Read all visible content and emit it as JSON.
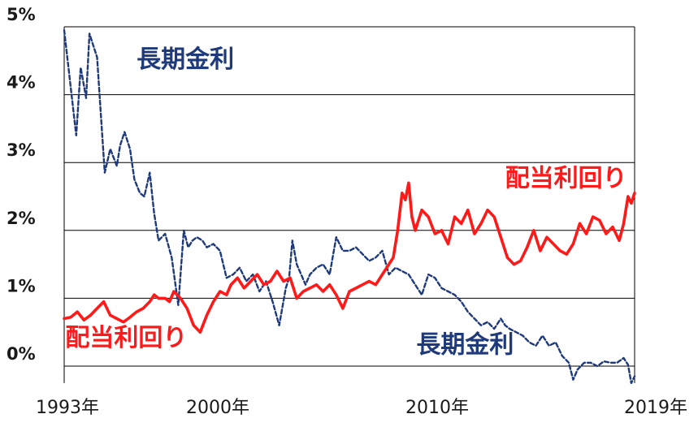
{
  "chart_data": {
    "type": "line",
    "y_unit": "%",
    "ylim": [
      -0.25,
      5.0
    ],
    "xlim": [
      1993.0,
      2019.0
    ],
    "yticks": [
      {
        "value": 5,
        "label": "5%"
      },
      {
        "value": 4,
        "label": "4%"
      },
      {
        "value": 3,
        "label": "3%"
      },
      {
        "value": 2,
        "label": "2%"
      },
      {
        "value": 1,
        "label": "1%"
      },
      {
        "value": 0,
        "label": "0%"
      }
    ],
    "xticks": [
      {
        "value": 1993,
        "label": "1993年"
      },
      {
        "value": 2000,
        "label": "2000年"
      },
      {
        "value": 2010,
        "label": "2010年"
      },
      {
        "value": 2019,
        "label": "2019年"
      }
    ],
    "grid": true,
    "annotations": [
      {
        "text": "長期金利",
        "series": "長期金利",
        "x": 1996.3,
        "y": 4.4
      },
      {
        "text": "配当利回り",
        "series": "配当利回り",
        "x": 2013.1,
        "y": 2.65
      },
      {
        "text": "配当利回り",
        "series": "配当利回り",
        "x": 1993.05,
        "y": 0.3
      },
      {
        "text": "長期金利",
        "series": "長期金利",
        "x": 2009.05,
        "y": 0.2
      }
    ],
    "series": [
      {
        "name": "長期金利",
        "color": "#1f3a7a",
        "style": "dashed",
        "x": [
          1993.0,
          1993.3,
          1993.55,
          1993.75,
          1994.0,
          1994.15,
          1994.3,
          1994.5,
          1994.65,
          1994.85,
          1995.1,
          1995.4,
          1995.55,
          1995.75,
          1996.0,
          1996.2,
          1996.45,
          1996.65,
          1996.9,
          1997.1,
          1997.3,
          1997.6,
          1997.9,
          1998.2,
          1998.45,
          1998.65,
          1998.85,
          1999.05,
          1999.3,
          1999.5,
          1999.8,
          2000.1,
          2000.4,
          2000.7,
          2001.0,
          2001.3,
          2001.6,
          2001.9,
          2002.2,
          2002.5,
          2002.8,
          2003.1,
          2003.25,
          2003.4,
          2003.6,
          2003.8,
          2004.0,
          2004.2,
          2004.5,
          2004.8,
          2005.1,
          2005.4,
          2005.7,
          2006.0,
          2006.3,
          2006.6,
          2006.9,
          2007.2,
          2007.5,
          2007.8,
          2008.1,
          2008.4,
          2008.7,
          2009.0,
          2009.3,
          2009.6,
          2009.9,
          2010.2,
          2010.5,
          2010.8,
          2011.1,
          2011.4,
          2011.7,
          2012.0,
          2012.3,
          2012.6,
          2012.9,
          2013.1,
          2013.3,
          2013.6,
          2013.9,
          2014.2,
          2014.5,
          2014.8,
          2015.1,
          2015.4,
          2015.7,
          2016.0,
          2016.2,
          2016.4,
          2016.7,
          2017.0,
          2017.3,
          2017.6,
          2017.9,
          2018.2,
          2018.5,
          2018.7,
          2018.85,
          2019.0
        ],
        "values": [
          4.95,
          4.1,
          3.4,
          4.4,
          3.95,
          4.9,
          4.75,
          4.55,
          3.8,
          2.85,
          3.2,
          2.95,
          3.25,
          3.45,
          3.2,
          2.75,
          2.55,
          2.5,
          2.85,
          2.25,
          1.85,
          1.95,
          1.6,
          0.9,
          2.0,
          1.75,
          1.85,
          1.9,
          1.85,
          1.75,
          1.8,
          1.7,
          1.3,
          1.35,
          1.45,
          1.25,
          1.35,
          1.1,
          1.25,
          0.95,
          0.6,
          1.15,
          1.3,
          1.85,
          1.5,
          1.35,
          1.2,
          1.35,
          1.45,
          1.5,
          1.35,
          1.9,
          1.7,
          1.7,
          1.75,
          1.65,
          1.55,
          1.6,
          1.7,
          1.35,
          1.45,
          1.4,
          1.35,
          1.2,
          1.05,
          1.35,
          1.3,
          1.15,
          1.1,
          1.05,
          0.95,
          0.8,
          0.7,
          0.6,
          0.65,
          0.55,
          0.7,
          0.6,
          0.55,
          0.5,
          0.45,
          0.35,
          0.3,
          0.45,
          0.3,
          0.35,
          0.15,
          0.05,
          -0.2,
          -0.05,
          0.05,
          0.05,
          0.0,
          0.07,
          0.05,
          0.05,
          0.12,
          0.02,
          -0.25,
          -0.15
        ]
      },
      {
        "name": "配当利回り",
        "color": "#ff1a1a",
        "style": "solid",
        "x": [
          1993.0,
          1993.3,
          1993.6,
          1993.9,
          1994.2,
          1994.5,
          1994.8,
          1995.1,
          1995.4,
          1995.7,
          1996.0,
          1996.3,
          1996.6,
          1996.9,
          1997.1,
          1997.3,
          1997.6,
          1997.8,
          1998.0,
          1998.3,
          1998.6,
          1998.9,
          1999.2,
          1999.5,
          1999.8,
          2000.1,
          2000.4,
          2000.6,
          2000.9,
          2001.2,
          2001.5,
          2001.8,
          2002.1,
          2002.4,
          2002.7,
          2003.0,
          2003.3,
          2003.6,
          2003.9,
          2004.2,
          2004.5,
          2004.8,
          2005.1,
          2005.4,
          2005.7,
          2006.0,
          2006.3,
          2006.6,
          2006.9,
          2007.2,
          2007.5,
          2007.8,
          2008.0,
          2008.2,
          2008.4,
          2008.55,
          2008.7,
          2008.85,
          2009.0,
          2009.3,
          2009.6,
          2009.9,
          2010.2,
          2010.5,
          2010.8,
          2011.1,
          2011.4,
          2011.7,
          2012.0,
          2012.3,
          2012.6,
          2012.9,
          2013.2,
          2013.5,
          2013.8,
          2014.1,
          2014.4,
          2014.7,
          2015.0,
          2015.3,
          2015.6,
          2015.9,
          2016.2,
          2016.5,
          2016.8,
          2017.1,
          2017.4,
          2017.7,
          2018.0,
          2018.3,
          2018.5,
          2018.7,
          2018.85,
          2019.0
        ],
        "values": [
          0.7,
          0.72,
          0.8,
          0.68,
          0.75,
          0.85,
          0.95,
          0.75,
          0.7,
          0.65,
          0.72,
          0.8,
          0.85,
          0.95,
          1.05,
          1.0,
          1.0,
          0.95,
          1.1,
          1.0,
          0.85,
          0.6,
          0.5,
          0.75,
          0.95,
          1.1,
          1.05,
          1.2,
          1.3,
          1.15,
          1.25,
          1.35,
          1.2,
          1.25,
          1.4,
          1.25,
          1.3,
          1.0,
          1.1,
          1.15,
          1.2,
          1.1,
          1.2,
          1.05,
          0.85,
          1.1,
          1.15,
          1.2,
          1.25,
          1.2,
          1.35,
          1.5,
          1.6,
          2.0,
          2.55,
          2.45,
          2.7,
          2.2,
          2.0,
          2.3,
          2.2,
          1.95,
          2.0,
          1.8,
          2.2,
          2.1,
          2.3,
          1.95,
          2.1,
          2.3,
          2.2,
          1.9,
          1.6,
          1.5,
          1.55,
          1.75,
          2.0,
          1.7,
          1.9,
          1.8,
          1.7,
          1.65,
          1.8,
          2.1,
          1.95,
          2.2,
          2.15,
          1.95,
          2.05,
          1.85,
          2.1,
          2.5,
          2.4,
          2.55
        ]
      }
    ]
  }
}
